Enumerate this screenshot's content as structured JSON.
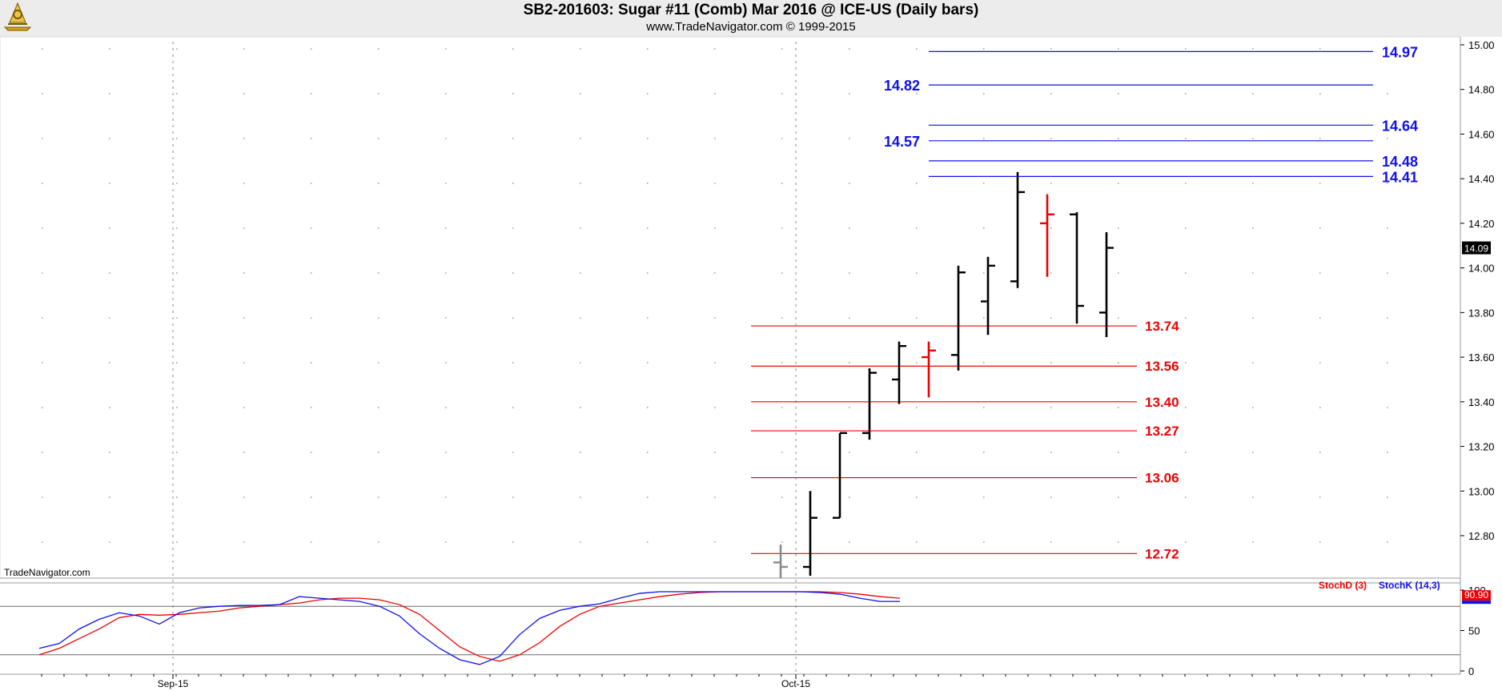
{
  "header": {
    "title": "SB2-201603:  Sugar #11 (Comb) Mar 2016 @ ICE-US  (Daily bars)",
    "subtitle": "www.TradeNavigator.com © 1999-2015"
  },
  "watermark": "TradeNavigator.com",
  "colors": {
    "up_bar": "#000000",
    "down_bar": "#ee0000",
    "resistance": "#1010ee",
    "support": "#ee0000",
    "stochD": "#ee0000",
    "stochK": "#1010ee",
    "header_bg": "#ececec"
  },
  "chart_data": [
    {
      "type": "ohlc",
      "price_axis": {
        "ylim": [
          12.65,
          15.05
        ],
        "ticks": [
          "15.00",
          "14.80",
          "14.60",
          "14.40",
          "14.20",
          "14.00",
          "13.80",
          "13.60",
          "13.40",
          "13.20",
          "13.00",
          "12.80"
        ],
        "last_price_label": "14.09"
      },
      "x_axis": {
        "date_labels": [
          "Sep-15",
          "Oct-15"
        ]
      },
      "bars": [
        {
          "o": 12.68,
          "h": 12.76,
          "l": 12.6,
          "c": 12.66,
          "color": "gray"
        },
        {
          "o": 12.66,
          "h": 13.0,
          "l": 12.62,
          "c": 12.88
        },
        {
          "o": 12.88,
          "h": 13.26,
          "l": 12.88,
          "c": 13.26
        },
        {
          "o": 13.26,
          "h": 13.55,
          "l": 13.23,
          "c": 13.53
        },
        {
          "o": 13.5,
          "h": 13.67,
          "l": 13.39,
          "c": 13.65
        },
        {
          "o": 13.6,
          "h": 13.67,
          "l": 13.42,
          "c": 13.63,
          "color": "red"
        },
        {
          "o": 13.61,
          "h": 14.01,
          "l": 13.54,
          "c": 13.98
        },
        {
          "o": 13.85,
          "h": 14.05,
          "l": 13.7,
          "c": 14.01
        },
        {
          "o": 13.94,
          "h": 14.43,
          "l": 13.91,
          "c": 14.34
        },
        {
          "o": 14.2,
          "h": 14.33,
          "l": 13.96,
          "c": 14.24,
          "color": "red"
        },
        {
          "o": 14.24,
          "h": 14.25,
          "l": 13.75,
          "c": 13.83
        },
        {
          "o": 13.8,
          "h": 14.16,
          "l": 13.69,
          "c": 14.09
        }
      ],
      "resistance_levels": [
        {
          "value": 14.97,
          "label": "14.97",
          "label_side": "right"
        },
        {
          "value": 14.82,
          "label": "14.82",
          "label_side": "left"
        },
        {
          "value": 14.64,
          "label": "14.64",
          "label_side": "right"
        },
        {
          "value": 14.57,
          "label": "14.57",
          "label_side": "left"
        },
        {
          "value": 14.48,
          "label": "14.48",
          "label_side": "right"
        },
        {
          "value": 14.41,
          "label": "14.41",
          "label_side": "right"
        }
      ],
      "support_levels": [
        {
          "value": 13.74,
          "label": "13.74"
        },
        {
          "value": 13.56,
          "label": "13.56"
        },
        {
          "value": 13.4,
          "label": "13.40"
        },
        {
          "value": 13.27,
          "label": "13.27"
        },
        {
          "value": 13.06,
          "label": "13.06"
        },
        {
          "value": 12.72,
          "label": "12.72"
        }
      ]
    },
    {
      "type": "line",
      "ylim": [
        0,
        100
      ],
      "ticks": [
        "100",
        "50",
        "0"
      ],
      "reference_lines": [
        80,
        20
      ],
      "legend": [
        "StochD (3)",
        "StochK (14,3)"
      ],
      "last_value_labels": [
        "90.90",
        "86.81"
      ],
      "x_index": [
        0,
        1,
        2,
        3,
        4,
        5,
        6,
        7,
        8,
        9,
        10,
        11,
        12,
        13,
        14,
        15,
        16,
        17,
        18,
        19,
        20,
        21,
        22,
        23,
        24,
        25,
        26,
        27,
        28,
        29,
        30,
        31,
        32,
        33,
        34,
        35,
        36,
        37,
        38,
        39,
        40,
        41,
        42,
        43
      ],
      "series": [
        {
          "name": "StochK (14,3)",
          "values": [
            28,
            34,
            52,
            64,
            72,
            68,
            58,
            72,
            78,
            80,
            81,
            81,
            82,
            92,
            90,
            88,
            86,
            80,
            68,
            46,
            28,
            14,
            8,
            18,
            45,
            65,
            75,
            80,
            83,
            90,
            96,
            98,
            98,
            98,
            98,
            98,
            98,
            98,
            98,
            97,
            95,
            90,
            86,
            86
          ]
        },
        {
          "name": "StochD (3)",
          "values": [
            20,
            28,
            40,
            52,
            66,
            70,
            69,
            70,
            72,
            74,
            78,
            80,
            82,
            84,
            88,
            90,
            90,
            88,
            82,
            70,
            50,
            30,
            18,
            12,
            20,
            35,
            55,
            70,
            80,
            84,
            88,
            92,
            95,
            97,
            98,
            98,
            98,
            98,
            98,
            98,
            97,
            95,
            92,
            90
          ]
        }
      ]
    }
  ]
}
